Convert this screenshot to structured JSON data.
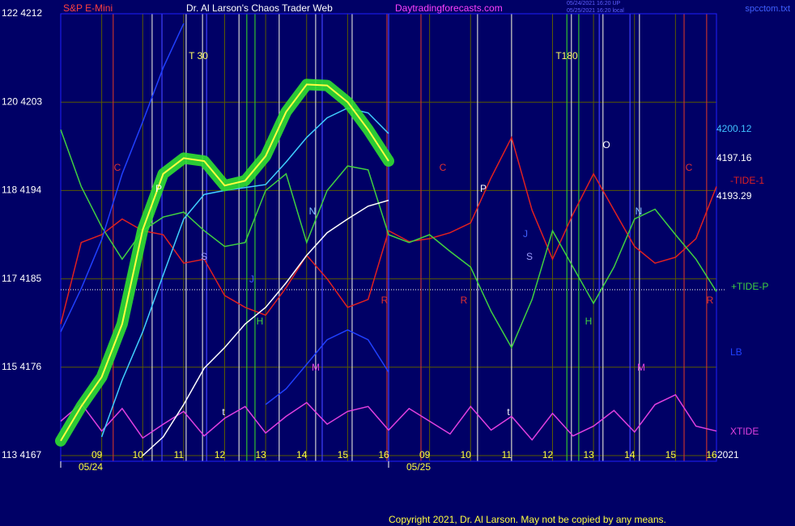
{
  "chart_data": {
    "type": "line",
    "title": "Dr. Al Larson's Chaos Trader Web",
    "symbol": "S&P E-Mini",
    "website": "Daytradingforecasts.com",
    "file_name": "spcctom.txt",
    "stamp_lines": [
      "05/24/2021 16:20 UP",
      "05/25/2021 16:20 local"
    ],
    "copyright": "Copyright 2021, Dr. Al Larson. May not be copied by any means.",
    "year_label": "2021",
    "x": [
      0,
      0.5,
      1,
      1.5,
      2,
      2.5,
      3,
      3.5,
      4,
      4.5,
      5,
      5.5,
      6,
      6.5,
      7,
      7.5,
      8,
      8.5,
      9,
      9.5,
      10,
      10.5,
      11,
      11.5,
      12,
      12.5,
      13,
      13.5,
      14,
      14.5,
      15,
      15.5,
      16
    ],
    "xlim": [
      0,
      16
    ],
    "xticks": [
      {
        "value": 1,
        "label": "09"
      },
      {
        "value": 2,
        "label": "10"
      },
      {
        "value": 3,
        "label": "11"
      },
      {
        "value": 4,
        "label": "12"
      },
      {
        "value": 5,
        "label": "13"
      },
      {
        "value": 6,
        "label": "14"
      },
      {
        "value": 7,
        "label": "15"
      },
      {
        "value": 8,
        "label": "16"
      },
      {
        "value": 9,
        "label": "09"
      },
      {
        "value": 10,
        "label": "10"
      },
      {
        "value": 11,
        "label": "11"
      },
      {
        "value": 12,
        "label": "12"
      },
      {
        "value": 13,
        "label": "13"
      },
      {
        "value": 14,
        "label": "14"
      },
      {
        "value": 15,
        "label": "15"
      },
      {
        "value": 16,
        "label": "16"
      }
    ],
    "date_ticks": [
      {
        "value": 0,
        "label": "05/24"
      },
      {
        "value": 8,
        "label": "05/25"
      }
    ],
    "ylim": [
      4167,
      4212
    ],
    "yticks": [
      {
        "value": 4167,
        "label": "113  4167"
      },
      {
        "value": 4176,
        "label": "115  4176"
      },
      {
        "value": 4185,
        "label": "117  4185"
      },
      {
        "value": 4194,
        "label": "118  4194"
      },
      {
        "value": 4203,
        "label": "120  4203"
      },
      {
        "value": 4212,
        "label": "122  4212"
      }
    ],
    "grid": true,
    "reference_line": 4183.9,
    "series": [
      {
        "name": "-TIDE-1",
        "color": "#e02020",
        "values": [
          4180.4,
          4188.7,
          4189.5,
          4191.1,
          4189.9,
          4189.5,
          4186.6,
          4187,
          4183.3,
          4182.1,
          4181.3,
          4184.1,
          4187.4,
          4185,
          4182.1,
          4182.9,
          4189.9,
          4188.8,
          4189.1,
          4189.7,
          4190.7,
          4195.3,
          4199.4,
          4192,
          4187,
          4191.6,
          4195.7,
          4192,
          4188.3,
          4186.6,
          4187.2,
          4189.1,
          4194.4
        ]
      },
      {
        "name": "+TIDE-P",
        "color": "#40d040",
        "values": [
          4200.2,
          4194.4,
          4190.3,
          4187,
          4189.9,
          4191.3,
          4191.8,
          4189.9,
          4188.3,
          4188.7,
          4194,
          4195.7,
          4188.7,
          4194,
          4196.5,
          4196.1,
          4189.5,
          4188.7,
          4189.5,
          4187.8,
          4186.2,
          4181.7,
          4178,
          4182.9,
          4189.9,
          4186.2,
          4182.5,
          4186.2,
          4191.1,
          4192.1,
          4189.5,
          4187,
          4183.7
        ]
      },
      {
        "name": "LB",
        "color": "#2040ff",
        "values": [
          4179.6,
          4184,
          4189,
          4195.7,
          4201,
          4206.5,
          4211,
          null,
          null,
          null,
          4172.2,
          4173.8,
          4176.3,
          4178.8,
          4179.8,
          4178.8,
          4175.5,
          null,
          null,
          null,
          null,
          null,
          null,
          null,
          null,
          null,
          null,
          null,
          null,
          null,
          null,
          null,
          null
        ]
      },
      {
        "name": "XTIDE",
        "color": "#e040e0",
        "values": [
          4170.5,
          4172.3,
          4169.5,
          4171.8,
          4168.8,
          4170.2,
          4171.5,
          4169,
          4170.8,
          4172,
          4169.3,
          4171,
          4172.4,
          4170.2,
          4171.5,
          4172,
          4169.6,
          4171.8,
          4170.5,
          4169.2,
          4172,
          4169.6,
          4171,
          4168.6,
          4171.3,
          4169,
          4170,
          4171.6,
          4169.4,
          4172.2,
          4173.2,
          4170,
          4169.5
        ]
      },
      {
        "color": "#ffffff",
        "values": [
          null,
          null,
          null,
          null,
          4167,
          4168.9,
          4172.2,
          4175.9,
          4178,
          4180.4,
          4182.1,
          4184.6,
          4187.4,
          4189.7,
          4191.1,
          4192.4,
          4193,
          null,
          null,
          null,
          null,
          null,
          null,
          null,
          null,
          null,
          null,
          null,
          null,
          null,
          null,
          null,
          null
        ]
      },
      {
        "color": "#40d0ff",
        "values": [
          null,
          null,
          4168.9,
          4174.7,
          4179.6,
          4185.4,
          4191.1,
          4193.6,
          4194,
          4194.3,
          4194.6,
          4196.9,
          4199.4,
          4201.4,
          4202.4,
          4201.9,
          4199.8,
          null,
          null,
          null,
          null,
          null,
          null,
          null,
          null,
          null,
          null,
          null,
          null,
          null,
          null,
          null,
          null
        ]
      },
      {
        "color": "#ffff40",
        "glow": "#30e030",
        "values": [
          4168.5,
          4172,
          4175,
          4180.4,
          4190,
          4195.7,
          4197.3,
          4197,
          4194.5,
          4195,
          4197.5,
          4202,
          4204.8,
          4204.7,
          4203,
          4200.2,
          4197,
          null,
          null,
          null,
          null,
          null,
          null,
          null,
          null,
          null,
          null,
          null,
          null,
          null,
          null,
          null,
          null
        ]
      }
    ],
    "price_labels": [
      {
        "value": 4200.12,
        "color": "#40c0ff"
      },
      {
        "value": 4197.16,
        "color": "#ffffff"
      },
      {
        "value": 4193.29,
        "color": "#ffffff"
      }
    ],
    "vertical_lines": [
      {
        "x": 1.28,
        "color": "#c03030"
      },
      {
        "x": 7.96,
        "color": "#c03030"
      },
      {
        "x": 8.79,
        "color": "#c03030"
      },
      {
        "x": 15.21,
        "color": "#c03030"
      },
      {
        "x": 15.76,
        "color": "#c03030"
      },
      {
        "x": 4.54,
        "color": "#30c030"
      },
      {
        "x": 4.74,
        "color": "#30c030"
      },
      {
        "x": 12.35,
        "color": "#30c030"
      },
      {
        "x": 12.64,
        "color": "#30c030"
      },
      {
        "x": 2.23,
        "color": "#d0d0d0"
      },
      {
        "x": 3.06,
        "color": "#d0d0d0"
      },
      {
        "x": 3.46,
        "color": "#d0d0d0"
      },
      {
        "x": 4.35,
        "color": "#d0d0d0"
      },
      {
        "x": 5.33,
        "color": "#d0d0d0"
      },
      {
        "x": 6.22,
        "color": "#d0d0d0"
      },
      {
        "x": 7.11,
        "color": "#d0d0d0"
      },
      {
        "x": 10.17,
        "color": "#d0d0d0"
      },
      {
        "x": 11.0,
        "color": "#d0d0d0"
      },
      {
        "x": 12.46,
        "color": "#d0d0d0"
      },
      {
        "x": 13.23,
        "color": "#d0d0d0"
      },
      {
        "x": 14.12,
        "color": "#d0d0d0"
      },
      {
        "x": 2.47,
        "color": "#4040ff"
      },
      {
        "x": 3.56,
        "color": "#4040ff"
      },
      {
        "x": 6.38,
        "color": "#4040ff"
      },
      {
        "x": 8.0,
        "color": "#4040ff"
      },
      {
        "x": 13.14,
        "color": "#4040ff"
      },
      {
        "x": 13.89,
        "color": "#4040ff"
      }
    ],
    "annotations": [
      {
        "text": "T 30",
        "color": "#ffff60"
      },
      {
        "text": "T180",
        "color": "#ffff60"
      },
      {
        "text": "C",
        "color": "#e03030"
      },
      {
        "text": "C",
        "color": "#e03030"
      },
      {
        "text": "C",
        "color": "#e03030"
      },
      {
        "text": "R",
        "color": "#e03030"
      },
      {
        "text": "R",
        "color": "#e03030"
      },
      {
        "text": "R",
        "color": "#e03030"
      },
      {
        "text": "P",
        "color": "#ffffff"
      },
      {
        "text": "P",
        "color": "#ffffff"
      },
      {
        "text": "S",
        "color": "#a0a0ff"
      },
      {
        "text": "S",
        "color": "#a0a0ff"
      },
      {
        "text": "N",
        "color": "#80c0ff"
      },
      {
        "text": "N",
        "color": "#80c0ff"
      },
      {
        "text": "H",
        "color": "#40d040"
      },
      {
        "text": "H",
        "color": "#40d040"
      },
      {
        "text": "M",
        "color": "#e040e0"
      },
      {
        "text": "M",
        "color": "#e040e0"
      },
      {
        "text": "O",
        "color": "#ffffff"
      },
      {
        "text": "J",
        "color": "#4060ff"
      },
      {
        "text": "J",
        "color": "#4060ff"
      },
      {
        "text": "t",
        "color": "#ffffff"
      },
      {
        "text": "t",
        "color": "#ffffff"
      }
    ]
  }
}
